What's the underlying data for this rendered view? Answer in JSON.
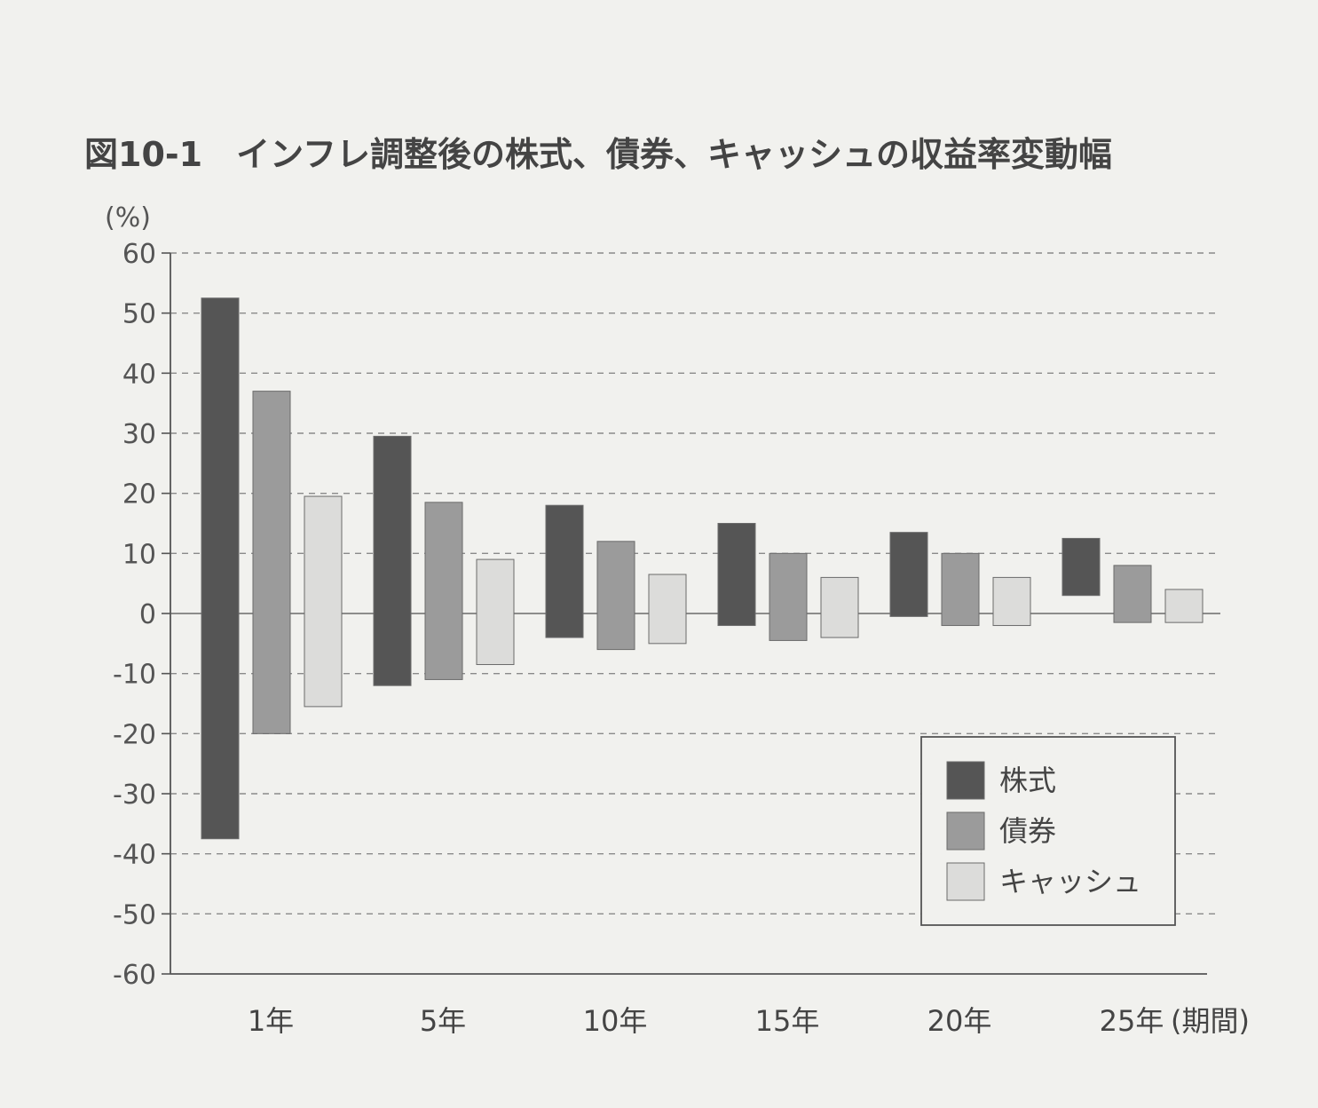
{
  "chart_data": {
    "type": "bar",
    "subtype": "floating-range",
    "title": "図10-1　インフレ調整後の株式、債券、キャッシュの収益率変動幅",
    "ylabel": "(%)",
    "xlabel": "(期間)",
    "categories": [
      "1年",
      "5年",
      "10年",
      "15年",
      "20年",
      "25年"
    ],
    "ylim": [
      -60,
      60
    ],
    "yticks": [
      60,
      50,
      40,
      30,
      20,
      10,
      0,
      -10,
      -20,
      -30,
      -40,
      -50,
      -60
    ],
    "grid": "dashed-horizontal",
    "legend_position": "lower-right",
    "series": [
      {
        "name": "株式",
        "color": "#555555",
        "ranges": [
          [
            -37.5,
            52.5
          ],
          [
            -12,
            29.5
          ],
          [
            -4,
            18
          ],
          [
            -2,
            15
          ],
          [
            -0.5,
            13.5
          ],
          [
            3,
            12.5
          ]
        ]
      },
      {
        "name": "債券",
        "color": "#9b9b9b",
        "ranges": [
          [
            -20,
            37
          ],
          [
            -11,
            18.5
          ],
          [
            -6,
            12
          ],
          [
            -4.5,
            10
          ],
          [
            -2,
            10
          ],
          [
            -1.5,
            8
          ]
        ]
      },
      {
        "name": "キャッシュ",
        "color": "#dcdcda",
        "ranges": [
          [
            -15.5,
            19.5
          ],
          [
            -8.5,
            9
          ],
          [
            -5,
            6.5
          ],
          [
            -4,
            6
          ],
          [
            -2,
            6
          ],
          [
            -1.5,
            4
          ]
        ]
      }
    ]
  }
}
